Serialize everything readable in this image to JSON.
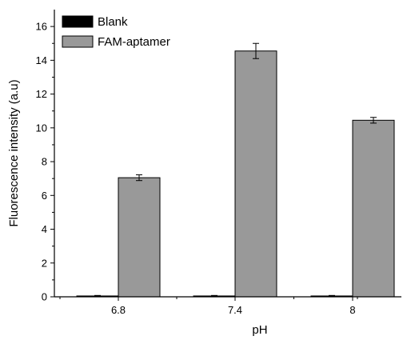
{
  "chart_data": {
    "type": "bar",
    "xlabel": "pH",
    "ylabel": "Fluorescence intensity (a.u)",
    "categories": [
      "6.8",
      "7.4",
      "8"
    ],
    "ylim": [
      0,
      17
    ],
    "yticks": [
      0,
      2,
      4,
      6,
      8,
      10,
      12,
      14,
      16
    ],
    "grid": false,
    "legend_position": "top-left",
    "series": [
      {
        "name": "Blank",
        "values": [
          0.05,
          0.05,
          0.05
        ],
        "errors": [
          0.03,
          0.03,
          0.03
        ],
        "color": "#000000"
      },
      {
        "name": "FAM-aptamer",
        "values": [
          7.05,
          14.55,
          10.45
        ],
        "errors": [
          0.17,
          0.45,
          0.17
        ],
        "color": "#999999"
      }
    ]
  }
}
